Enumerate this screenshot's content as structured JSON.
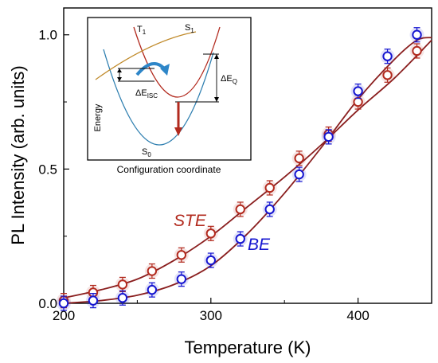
{
  "chart_data": {
    "type": "scatter",
    "xlabel": "Temperature (K)",
    "ylabel": "PL Intensity (arb. units)",
    "xlim": [
      200,
      450
    ],
    "ylim": [
      0,
      1.1
    ],
    "x_ticks": [
      "200",
      "300",
      "400"
    ],
    "y_ticks": [
      "0.0",
      "0.5",
      "1.0"
    ],
    "grid": false,
    "series": [
      {
        "name": "STE",
        "color": "#b22a1e",
        "x": [
          200,
          220,
          240,
          260,
          280,
          300,
          320,
          340,
          360,
          380,
          400,
          420,
          440
        ],
        "y": [
          0.01,
          0.04,
          0.07,
          0.12,
          0.18,
          0.26,
          0.35,
          0.43,
          0.54,
          0.63,
          0.75,
          0.85,
          0.94
        ],
        "fit": [
          [
            200,
            0.02
          ],
          [
            225,
            0.05
          ],
          [
            250,
            0.09
          ],
          [
            275,
            0.16
          ],
          [
            300,
            0.25
          ],
          [
            325,
            0.36
          ],
          [
            350,
            0.47
          ],
          [
            375,
            0.59
          ],
          [
            400,
            0.72
          ],
          [
            425,
            0.84
          ],
          [
            450,
            0.98
          ]
        ]
      },
      {
        "name": "BE",
        "color": "#1515d0",
        "x": [
          200,
          220,
          240,
          260,
          280,
          300,
          320,
          340,
          360,
          380,
          400,
          420,
          440
        ],
        "y": [
          0.0,
          0.01,
          0.02,
          0.05,
          0.09,
          0.16,
          0.24,
          0.35,
          0.48,
          0.62,
          0.79,
          0.92,
          1.0
        ],
        "fit": [
          [
            200,
            0.0
          ],
          [
            225,
            0.01
          ],
          [
            250,
            0.03
          ],
          [
            275,
            0.07
          ],
          [
            300,
            0.14
          ],
          [
            325,
            0.26
          ],
          [
            350,
            0.41
          ],
          [
            375,
            0.58
          ],
          [
            400,
            0.76
          ],
          [
            425,
            0.91
          ],
          [
            440,
            0.98
          ],
          [
            450,
            0.99
          ]
        ]
      }
    ],
    "inset": {
      "xlabel": "Configuration coordinate",
      "ylabel": "Energy",
      "labels": {
        "t1_base": "T",
        "t1_sub": "1",
        "s1_base": "S",
        "s1_sub": "1",
        "s0_base": "S",
        "s0_sub": "0",
        "disc_base": "ΔE",
        "disc_sub": "ISC",
        "dq_base": "ΔE",
        "dq_sub": "Q"
      },
      "colors": {
        "t1": "#b22a1e",
        "s1": "#c08a2a",
        "s0": "#2f7fb0",
        "arrow": "#2e86c8"
      }
    }
  }
}
